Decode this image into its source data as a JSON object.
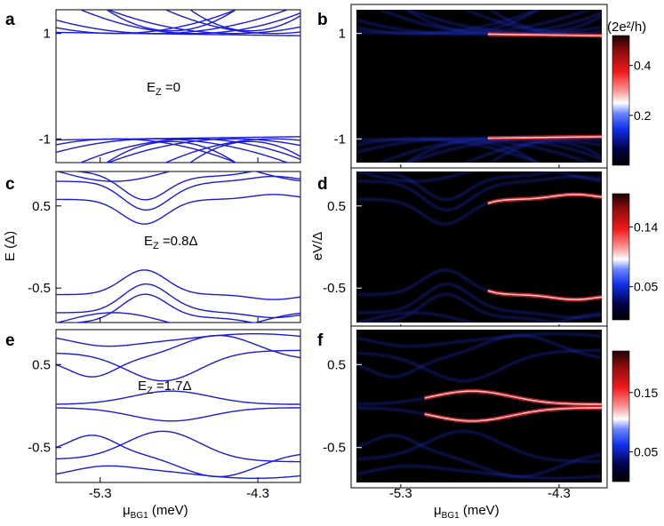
{
  "chart_data": {
    "type": "line",
    "x_axis": {
      "label_main": "μ",
      "label_sub": "BG1",
      "label_unit": " (meV)",
      "ticks": [
        -5.3,
        -4.3
      ],
      "tick_labels": [
        "-5.3",
        "-4.3"
      ],
      "range": [
        -5.58,
        -4.03
      ]
    },
    "left_ylabel": {
      "main": "E",
      "unit": " (Δ)"
    },
    "right_ylabel": "eV/Δ",
    "line_color": "#1919e0",
    "rows": [
      {
        "id": "top",
        "left_letter": "a",
        "right_letter": "b",
        "annotation": {
          "main": "E",
          "sub": "Z",
          "tail": " =0"
        },
        "ylim": [
          -1.45,
          1.45
        ],
        "yticks": [
          1,
          -1
        ],
        "ytick_labels": [
          "1",
          "-1"
        ],
        "colorbar": {
          "title": "(2e²/h)",
          "range": [
            0,
            0.52
          ],
          "ticks": [
            0.4,
            0.2
          ],
          "tick_labels": [
            "0.4",
            "0.2"
          ]
        }
      },
      {
        "id": "middle",
        "left_letter": "c",
        "right_letter": "d",
        "annotation": {
          "main": "E",
          "sub": "Z",
          "tail": " =0.8Δ"
        },
        "ylim": [
          -0.92,
          0.92
        ],
        "yticks": [
          0.5,
          -0.5
        ],
        "ytick_labels": [
          "0.5",
          "-0.5"
        ],
        "colorbar": {
          "title": "",
          "range": [
            0,
            0.19
          ],
          "ticks": [
            0.14,
            0.05
          ],
          "tick_labels": [
            "0.14",
            "0.05"
          ]
        }
      },
      {
        "id": "bottom",
        "left_letter": "e",
        "right_letter": "f",
        "annotation": {
          "main": "E",
          "sub": "Z",
          "tail": " =1.7Δ"
        },
        "ylim": [
          -0.92,
          0.92
        ],
        "yticks": [
          0.5,
          -0.5
        ],
        "ytick_labels": [
          "0.5",
          "-0.5"
        ],
        "colorbar": {
          "title": "",
          "range": [
            0,
            0.22
          ],
          "ticks": [
            0.15,
            0.05
          ],
          "tick_labels": [
            "0.15",
            "0.05"
          ]
        }
      }
    ]
  }
}
